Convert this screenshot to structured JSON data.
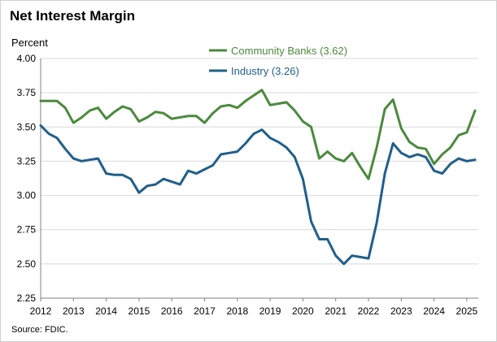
{
  "chart_data": {
    "type": "line",
    "title": "Net Interest Margin",
    "ylabel": "Percent",
    "xlabel": "",
    "ylim": [
      2.25,
      4.0
    ],
    "xlim": [
      2012,
      2025.35
    ],
    "yticks": [
      "4.00",
      "3.75",
      "3.50",
      "3.25",
      "3.00",
      "2.75",
      "2.50",
      "2.25"
    ],
    "xticks": [
      "2012",
      "2013",
      "2014",
      "2015",
      "2016",
      "2017",
      "2018",
      "2019",
      "2020",
      "2021",
      "2022",
      "2023",
      "2024",
      "2025"
    ],
    "grid": true,
    "legend_position": "top-center",
    "source": "Source: FDIC.",
    "series": [
      {
        "name": "Community Banks (3.62)",
        "color": "#4a8a3c",
        "x": [
          2012.0,
          2012.25,
          2012.5,
          2012.75,
          2013.0,
          2013.25,
          2013.5,
          2013.75,
          2014.0,
          2014.25,
          2014.5,
          2014.75,
          2015.0,
          2015.25,
          2015.5,
          2015.75,
          2016.0,
          2016.25,
          2016.5,
          2016.75,
          2017.0,
          2017.25,
          2017.5,
          2017.75,
          2018.0,
          2018.25,
          2018.5,
          2018.75,
          2019.0,
          2019.25,
          2019.5,
          2019.75,
          2020.0,
          2020.25,
          2020.5,
          2020.75,
          2021.0,
          2021.25,
          2021.5,
          2021.75,
          2022.0,
          2022.25,
          2022.5,
          2022.75,
          2023.0,
          2023.25,
          2023.5,
          2023.75,
          2024.0,
          2024.25,
          2024.5,
          2024.75,
          2025.0,
          2025.25
        ],
        "values": [
          3.69,
          3.69,
          3.69,
          3.64,
          3.53,
          3.57,
          3.62,
          3.64,
          3.56,
          3.61,
          3.65,
          3.63,
          3.54,
          3.57,
          3.61,
          3.6,
          3.56,
          3.57,
          3.58,
          3.58,
          3.53,
          3.6,
          3.65,
          3.66,
          3.64,
          3.69,
          3.73,
          3.77,
          3.66,
          3.67,
          3.68,
          3.62,
          3.54,
          3.5,
          3.27,
          3.32,
          3.27,
          3.25,
          3.31,
          3.21,
          3.12,
          3.35,
          3.63,
          3.7,
          3.49,
          3.39,
          3.35,
          3.34,
          3.23,
          3.3,
          3.35,
          3.44,
          3.46,
          3.62
        ]
      },
      {
        "name": "Industry (3.26)",
        "color": "#1f5f8b",
        "x": [
          2012.0,
          2012.25,
          2012.5,
          2012.75,
          2013.0,
          2013.25,
          2013.5,
          2013.75,
          2014.0,
          2014.25,
          2014.5,
          2014.75,
          2015.0,
          2015.25,
          2015.5,
          2015.75,
          2016.0,
          2016.25,
          2016.5,
          2016.75,
          2017.0,
          2017.25,
          2017.5,
          2017.75,
          2018.0,
          2018.25,
          2018.5,
          2018.75,
          2019.0,
          2019.25,
          2019.5,
          2019.75,
          2020.0,
          2020.25,
          2020.5,
          2020.75,
          2021.0,
          2021.25,
          2021.5,
          2021.75,
          2022.0,
          2022.25,
          2022.5,
          2022.75,
          2023.0,
          2023.25,
          2023.5,
          2023.75,
          2024.0,
          2024.25,
          2024.5,
          2024.75,
          2025.0,
          2025.25
        ],
        "values": [
          3.51,
          3.45,
          3.42,
          3.34,
          3.27,
          3.25,
          3.26,
          3.27,
          3.16,
          3.15,
          3.15,
          3.12,
          3.02,
          3.07,
          3.08,
          3.12,
          3.1,
          3.08,
          3.18,
          3.16,
          3.19,
          3.22,
          3.3,
          3.31,
          3.32,
          3.38,
          3.45,
          3.48,
          3.42,
          3.39,
          3.35,
          3.28,
          3.12,
          2.81,
          2.68,
          2.68,
          2.56,
          2.5,
          2.56,
          2.55,
          2.54,
          2.8,
          3.16,
          3.38,
          3.31,
          3.28,
          3.3,
          3.28,
          3.18,
          3.16,
          3.23,
          3.27,
          3.25,
          3.26
        ]
      }
    ]
  }
}
